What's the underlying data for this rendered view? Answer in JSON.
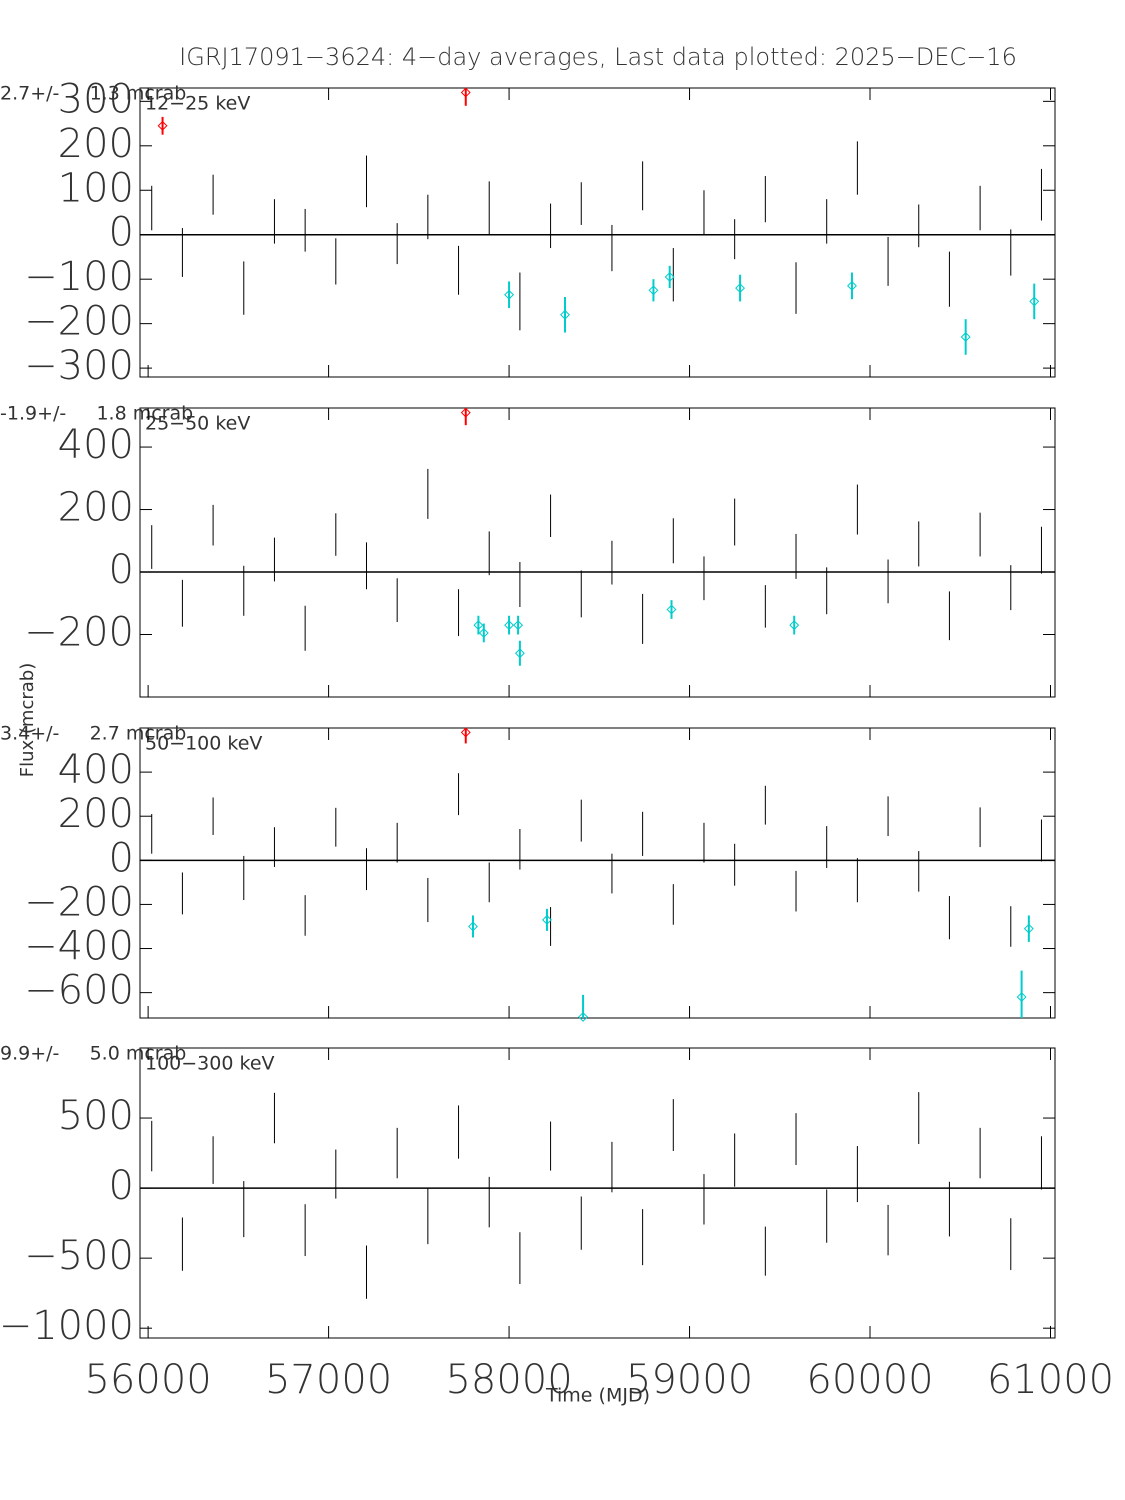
{
  "chart_data": [
    {
      "type": "errorbar",
      "title": "IGRJ17091−3624:  4−day averages,  Last data plotted: 2025−DEC−16",
      "band": "12−25 keV",
      "annotation": "2.7+/-     1.3 mcrab",
      "xlim": [
        55955,
        61025
      ],
      "ylim": [
        -320,
        330
      ],
      "yticks": [
        {
          "value": -300,
          "label": "−300"
        },
        {
          "value": -200,
          "label": "−200"
        },
        {
          "value": -100,
          "label": "−100"
        },
        0,
        100,
        200,
        300
      ],
      "series": [
        {
          "color": "#000000",
          "x": [
            56020,
            56190,
            56360,
            56530,
            56700,
            56870,
            57040,
            57210,
            57380,
            57550,
            57720,
            57890,
            58060,
            58230,
            58400,
            58570,
            58740,
            58910,
            59080,
            59250,
            59420,
            59590,
            59760,
            59930,
            60100,
            60270,
            60440,
            60610,
            60780,
            60950
          ],
          "values": [
            60,
            -40,
            90,
            -120,
            30,
            10,
            -60,
            120,
            -20,
            40,
            -80,
            60,
            -150,
            20,
            70,
            -30,
            110,
            -90,
            50,
            -10,
            80,
            -120,
            30,
            150,
            -60,
            20,
            -100,
            60,
            -40,
            90
          ],
          "errors": [
            50,
            55,
            45,
            60,
            50,
            48,
            52,
            58,
            46,
            50,
            55,
            60,
            65,
            50,
            48,
            52,
            55,
            60,
            50,
            45,
            52,
            58,
            50,
            60,
            55,
            48,
            62,
            50,
            52,
            58
          ]
        },
        {
          "color": "#ff0000",
          "x": [
            56080,
            57760
          ],
          "values": [
            245,
            320
          ],
          "errors": [
            20,
            30
          ]
        },
        {
          "color": "#00cccc",
          "x": [
            58000,
            58310,
            58800,
            58890,
            59280,
            59900,
            60530,
            60910
          ],
          "values": [
            -135,
            -180,
            -125,
            -95,
            -120,
            -115,
            -230,
            -150
          ],
          "errors": [
            30,
            40,
            25,
            25,
            30,
            30,
            40,
            40
          ]
        }
      ]
    },
    {
      "type": "errorbar",
      "band": "25−50 keV",
      "annotation": "-1.9+/-     1.8 mcrab",
      "xlim": [
        55955,
        61025
      ],
      "ylim": [
        -400,
        525
      ],
      "yticks": [
        {
          "value": -200,
          "label": "−200"
        },
        0,
        200,
        400
      ],
      "series": [
        {
          "color": "#000000",
          "x": [
            56020,
            56190,
            56360,
            56530,
            56700,
            56870,
            57040,
            57210,
            57380,
            57550,
            57720,
            57890,
            58060,
            58230,
            58400,
            58570,
            58740,
            58910,
            59080,
            59250,
            59420,
            59590,
            59760,
            59930,
            60100,
            60270,
            60440,
            60610,
            60780,
            60950
          ],
          "values": [
            80,
            -100,
            150,
            -60,
            40,
            -180,
            120,
            20,
            -90,
            250,
            -130,
            60,
            -40,
            180,
            -70,
            30,
            -150,
            100,
            -20,
            160,
            -110,
            50,
            -60,
            200,
            -30,
            90,
            -140,
            120,
            -50,
            70
          ],
          "errors": [
            70,
            75,
            65,
            80,
            70,
            72,
            68,
            75,
            70,
            80,
            75,
            70,
            72,
            68,
            75,
            70,
            80,
            72,
            70,
            75,
            68,
            72,
            75,
            80,
            70,
            72,
            78,
            70,
            72,
            75
          ]
        },
        {
          "color": "#ff0000",
          "x": [
            57760
          ],
          "values": [
            510
          ],
          "errors": [
            40
          ]
        },
        {
          "color": "#00cccc",
          "x": [
            57830,
            57860,
            58000,
            58050,
            58060,
            58900,
            59580
          ],
          "values": [
            -170,
            -195,
            -170,
            -170,
            -260,
            -120,
            -170
          ],
          "errors": [
            30,
            30,
            30,
            30,
            40,
            30,
            30
          ]
        }
      ]
    },
    {
      "type": "errorbar",
      "band": "50−100 keV",
      "annotation": "3.4+/-     2.7 mcrab",
      "ylabel": "Flux (mcrab)",
      "xlim": [
        55955,
        61025
      ],
      "ylim": [
        -715,
        600
      ],
      "yticks": [
        {
          "value": -600,
          "label": "−600"
        },
        {
          "value": -400,
          "label": "−400"
        },
        {
          "value": -200,
          "label": "−200"
        },
        0,
        200,
        400
      ],
      "series": [
        {
          "color": "#000000",
          "x": [
            56020,
            56190,
            56360,
            56530,
            56700,
            56870,
            57040,
            57210,
            57380,
            57550,
            57720,
            57890,
            58060,
            58230,
            58400,
            58570,
            58740,
            58910,
            59080,
            59250,
            59420,
            59590,
            59760,
            59930,
            60100,
            60270,
            60440,
            60610,
            60780,
            60950
          ],
          "values": [
            120,
            -150,
            200,
            -80,
            60,
            -250,
            150,
            -40,
            80,
            -180,
            300,
            -100,
            50,
            -300,
            180,
            -60,
            120,
            -200,
            80,
            -20,
            250,
            -140,
            60,
            -90,
            200,
            -50,
            -260,
            150,
            -300,
            90
          ],
          "errors": [
            90,
            95,
            85,
            100,
            90,
            92,
            88,
            95,
            90,
            100,
            95,
            90,
            92,
            88,
            95,
            90,
            100,
            92,
            90,
            95,
            88,
            92,
            95,
            100,
            90,
            92,
            98,
            90,
            92,
            95
          ]
        },
        {
          "color": "#ff0000",
          "x": [
            57760
          ],
          "values": [
            580
          ],
          "errors": [
            50
          ]
        },
        {
          "color": "#00cccc",
          "x": [
            57800,
            58210,
            58410,
            60840,
            60880
          ],
          "values": [
            -300,
            -270,
            -710,
            -620,
            -310
          ],
          "errors": [
            50,
            50,
            100,
            120,
            60
          ]
        }
      ]
    },
    {
      "type": "errorbar",
      "band": "100−300 keV",
      "annotation": "9.9+/-     5.0 mcrab",
      "xlabel": "Time (MJD)",
      "xlim": [
        55955,
        61025
      ],
      "ylim": [
        -1070,
        1000
      ],
      "xticks": [
        56000,
        57000,
        58000,
        59000,
        60000,
        61000
      ],
      "yticks": [
        {
          "value": -1000,
          "label": "−1000"
        },
        {
          "value": -500,
          "label": "−500"
        },
        0,
        500
      ],
      "series": [
        {
          "color": "#000000",
          "x": [
            56020,
            56190,
            56360,
            56530,
            56700,
            56870,
            57040,
            57210,
            57380,
            57550,
            57720,
            57890,
            58060,
            58230,
            58400,
            58570,
            58740,
            58910,
            59080,
            59250,
            59420,
            59590,
            59760,
            59930,
            60100,
            60270,
            60440,
            60610,
            60780,
            60950
          ],
          "values": [
            300,
            -400,
            200,
            -150,
            500,
            -300,
            100,
            -600,
            250,
            -200,
            400,
            -100,
            -500,
            300,
            -250,
            150,
            -350,
            450,
            -80,
            200,
            -450,
            350,
            -200,
            100,
            -300,
            500,
            -150,
            250,
            -400,
            180
          ],
          "errors": [
            180,
            190,
            170,
            200,
            180,
            185,
            175,
            190,
            180,
            200,
            190,
            180,
            185,
            175,
            190,
            180,
            200,
            185,
            180,
            190,
            175,
            185,
            190,
            200,
            180,
            185,
            195,
            180,
            185,
            190
          ]
        }
      ]
    }
  ]
}
